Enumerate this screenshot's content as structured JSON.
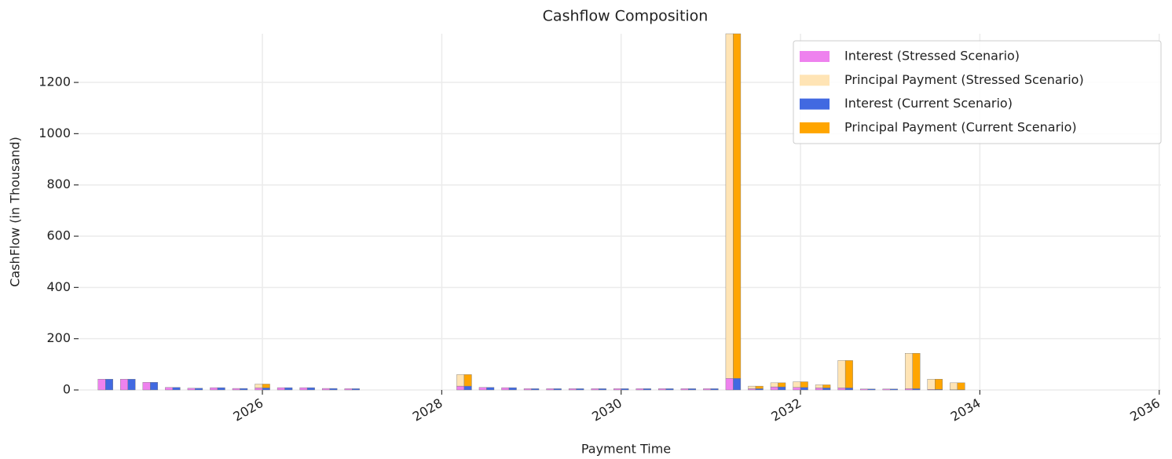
{
  "chart_data": {
    "type": "bar",
    "title": "Cashflow Composition",
    "x_label": "Payment Time",
    "y_label": "CashFlow (in Thousand)",
    "x": [
      2024.25,
      2024.5,
      2024.75,
      2025.0,
      2025.25,
      2025.5,
      2025.75,
      2026.0,
      2026.25,
      2026.5,
      2026.75,
      2027.0,
      2028.25,
      2028.5,
      2028.75,
      2029.0,
      2029.25,
      2029.5,
      2029.75,
      2030.0,
      2030.25,
      2030.5,
      2030.75,
      2031.0,
      2031.25,
      2031.5,
      2031.75,
      2032.0,
      2032.25,
      2032.5,
      2032.75,
      2033.0,
      2033.25,
      2033.5,
      2033.75
    ],
    "series": [
      {
        "name": "Interest (Stressed Scenario)",
        "color": "#ee82ee",
        "values": [
          42,
          42,
          30,
          10,
          7,
          9,
          6,
          8,
          9,
          9,
          6,
          5,
          15,
          10,
          9,
          5,
          5,
          5,
          5,
          5,
          5,
          5,
          5,
          5,
          45,
          5,
          12,
          10,
          8,
          8,
          4,
          4,
          5,
          2,
          1
        ]
      },
      {
        "name": "Principal Payment (Stressed Scenario)",
        "color": "#ffe4b5",
        "values": [
          0,
          0,
          0,
          0,
          0,
          0,
          0,
          15,
          0,
          0,
          0,
          0,
          45,
          0,
          0,
          0,
          0,
          0,
          0,
          0,
          0,
          0,
          0,
          0,
          1345,
          10,
          16,
          22,
          12,
          107,
          0,
          0,
          138,
          40,
          27
        ]
      },
      {
        "name": "Interest (Current Scenario)",
        "color": "#4169e1",
        "values": [
          42,
          42,
          30,
          10,
          7,
          9,
          6,
          8,
          9,
          9,
          6,
          5,
          15,
          10,
          9,
          5,
          5,
          5,
          5,
          5,
          5,
          5,
          5,
          5,
          45,
          5,
          12,
          10,
          8,
          8,
          4,
          4,
          5,
          2,
          1
        ]
      },
      {
        "name": "Principal Payment (Current Scenario)",
        "color": "#ffa500",
        "values": [
          0,
          0,
          0,
          0,
          0,
          0,
          0,
          15,
          0,
          0,
          0,
          0,
          45,
          0,
          0,
          0,
          0,
          0,
          0,
          0,
          0,
          0,
          0,
          0,
          1345,
          10,
          16,
          22,
          12,
          107,
          0,
          0,
          138,
          40,
          27
        ]
      }
    ],
    "xlim": [
      2023.95,
      2036.02
    ],
    "xticks": [
      2026,
      2028,
      2030,
      2032,
      2034,
      2036
    ],
    "ylim": [
      0,
      1390
    ],
    "yticks": [
      0,
      200,
      400,
      600,
      800,
      1000,
      1200
    ],
    "grid": true,
    "legend": "upper right"
  }
}
